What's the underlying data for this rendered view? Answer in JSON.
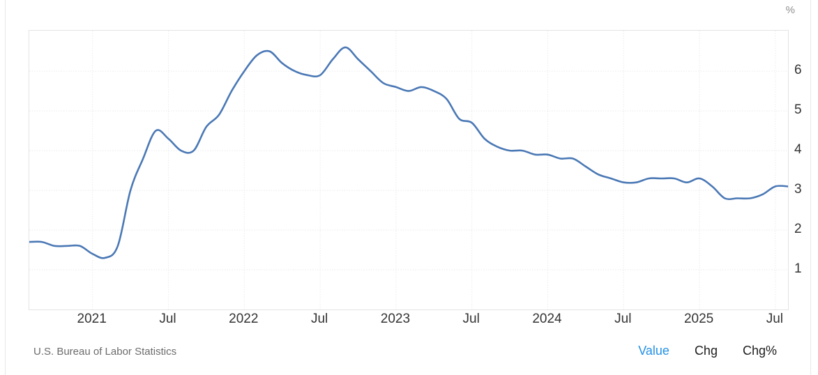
{
  "chart_data": {
    "type": "line",
    "title": "",
    "unit": "%",
    "line_color": "#4a78b5",
    "grid": true,
    "legend_position": "none",
    "x_tick_labels": [
      "2021",
      "Jul",
      "2022",
      "Jul",
      "2023",
      "Jul",
      "2024",
      "Jul",
      "2025",
      "Jul"
    ],
    "y_tick_labels": [
      "1",
      "2",
      "3",
      "4",
      "5",
      "6"
    ],
    "ylim": [
      0,
      7.02
    ],
    "x": [
      "2020-08",
      "2020-09",
      "2020-10",
      "2020-11",
      "2020-12",
      "2021-01",
      "2021-02",
      "2021-03",
      "2021-04",
      "2021-05",
      "2021-06",
      "2021-07",
      "2021-08",
      "2021-09",
      "2021-10",
      "2021-11",
      "2021-12",
      "2022-01",
      "2022-02",
      "2022-03",
      "2022-04",
      "2022-05",
      "2022-06",
      "2022-07",
      "2022-08",
      "2022-09",
      "2022-10",
      "2022-11",
      "2022-12",
      "2023-01",
      "2023-02",
      "2023-03",
      "2023-04",
      "2023-05",
      "2023-06",
      "2023-07",
      "2023-08",
      "2023-09",
      "2023-10",
      "2023-11",
      "2023-12",
      "2024-01",
      "2024-02",
      "2024-03",
      "2024-04",
      "2024-05",
      "2024-06",
      "2024-07",
      "2024-08",
      "2024-09",
      "2024-10",
      "2024-11",
      "2024-12",
      "2025-01",
      "2025-02",
      "2025-03",
      "2025-04",
      "2025-05",
      "2025-06",
      "2025-07",
      "2025-08"
    ],
    "values": [
      1.7,
      1.7,
      1.6,
      1.6,
      1.6,
      1.4,
      1.3,
      1.6,
      3.0,
      3.8,
      4.5,
      4.3,
      4.0,
      4.0,
      4.6,
      4.9,
      5.5,
      6.0,
      6.4,
      6.5,
      6.2,
      6.0,
      5.9,
      5.9,
      6.3,
      6.6,
      6.3,
      6.0,
      5.7,
      5.6,
      5.5,
      5.6,
      5.5,
      5.3,
      4.8,
      4.7,
      4.3,
      4.1,
      4.0,
      4.0,
      3.9,
      3.9,
      3.8,
      3.8,
      3.6,
      3.4,
      3.3,
      3.2,
      3.2,
      3.3,
      3.3,
      3.3,
      3.2,
      3.3,
      3.1,
      2.8,
      2.8,
      2.8,
      2.9,
      3.1,
      3.1
    ]
  },
  "footer": {
    "source": "U.S. Bureau of Labor Statistics",
    "modes": [
      {
        "label": "Value",
        "active": true
      },
      {
        "label": "Chg",
        "active": false
      },
      {
        "label": "Chg%",
        "active": false
      }
    ],
    "active_color": "#2491e8"
  }
}
